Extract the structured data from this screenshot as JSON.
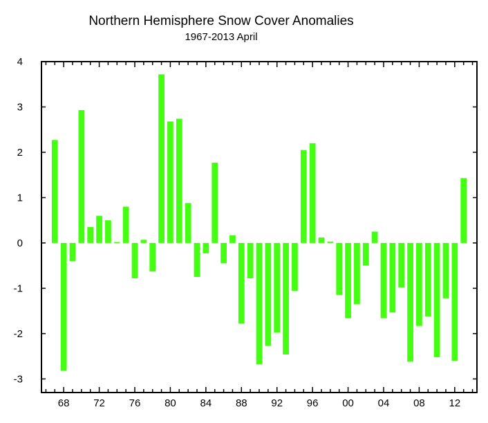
{
  "chart_data": {
    "type": "bar",
    "title": "Northern Hemisphere Snow Cover Anomalies",
    "subtitle": "1967-2013 April",
    "xlabel": "",
    "ylabel": "",
    "ylim": [
      -3.3,
      4
    ],
    "xlim": [
      1965.5,
      2014.5
    ],
    "bar_color": "#44ff11",
    "grid": false,
    "y_ticks": [
      -3,
      -2,
      -1,
      0,
      1,
      2,
      3,
      4
    ],
    "y_tick_labels": [
      "-3",
      "-2",
      "-1",
      "0",
      "1",
      "2",
      "3",
      "4"
    ],
    "x_ticks": [
      1968,
      1972,
      1976,
      1980,
      1984,
      1988,
      1992,
      1996,
      2000,
      2004,
      2008,
      2012
    ],
    "x_tick_labels": [
      "68",
      "72",
      "76",
      "80",
      "84",
      "88",
      "92",
      "96",
      "00",
      "04",
      "08",
      "12"
    ],
    "categories": [
      1967,
      1968,
      1969,
      1970,
      1971,
      1972,
      1973,
      1974,
      1975,
      1976,
      1977,
      1978,
      1979,
      1980,
      1981,
      1982,
      1983,
      1984,
      1985,
      1986,
      1987,
      1988,
      1989,
      1990,
      1991,
      1992,
      1993,
      1994,
      1995,
      1996,
      1997,
      1998,
      1999,
      2000,
      2001,
      2002,
      2003,
      2004,
      2005,
      2006,
      2007,
      2008,
      2009,
      2010,
      2011,
      2012,
      2013
    ],
    "values": [
      2.27,
      -2.82,
      -0.4,
      2.93,
      0.35,
      0.6,
      0.5,
      0.02,
      0.8,
      -0.78,
      0.07,
      -0.63,
      3.72,
      2.68,
      2.74,
      0.88,
      -0.75,
      -0.23,
      1.77,
      -0.45,
      0.17,
      -1.78,
      -0.78,
      -2.68,
      -2.27,
      -1.98,
      -2.46,
      -1.06,
      2.05,
      2.2,
      0.12,
      0.03,
      -1.15,
      -1.66,
      -1.35,
      -0.5,
      0.25,
      -1.66,
      -1.53,
      -0.98,
      -2.62,
      -1.83,
      -1.62,
      -2.52,
      -1.22,
      -2.6,
      1.43
    ]
  }
}
